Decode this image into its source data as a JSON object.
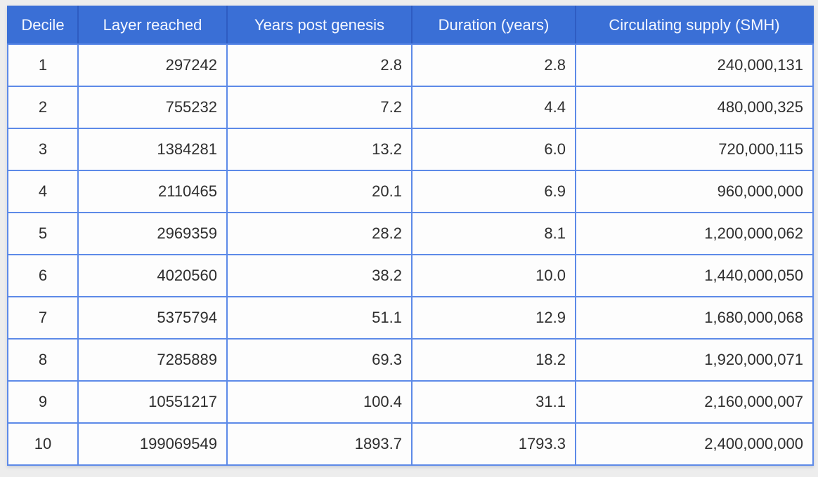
{
  "table": {
    "columns": [
      "Decile",
      "Layer reached",
      "Years post genesis",
      "Duration (years)",
      "Circulating supply (SMH)"
    ],
    "rows": [
      [
        "1",
        "297242",
        "2.8",
        "2.8",
        "240,000,131"
      ],
      [
        "2",
        "755232",
        "7.2",
        "4.4",
        "480,000,325"
      ],
      [
        "3",
        "1384281",
        "13.2",
        "6.0",
        "720,000,115"
      ],
      [
        "4",
        "2110465",
        "20.1",
        "6.9",
        "960,000,000"
      ],
      [
        "5",
        "2969359",
        "28.2",
        "8.1",
        "1,200,000,062"
      ],
      [
        "6",
        "4020560",
        "38.2",
        "10.0",
        "1,440,000,050"
      ],
      [
        "7",
        "5375794",
        "51.1",
        "12.9",
        "1,680,000,068"
      ],
      [
        "8",
        "7285889",
        "69.3",
        "18.2",
        "1,920,000,071"
      ],
      [
        "9",
        "10551217",
        "100.4",
        "31.1",
        "2,160,000,007"
      ],
      [
        "10",
        "199069549",
        "1893.7",
        "1793.3",
        "2,400,000,000"
      ]
    ]
  },
  "chart_data": {
    "type": "table",
    "columns": [
      "Decile",
      "Layer reached",
      "Years post genesis",
      "Duration (years)",
      "Circulating supply (SMH)"
    ],
    "rows": [
      [
        1,
        297242,
        2.8,
        2.8,
        240000131
      ],
      [
        2,
        755232,
        7.2,
        4.4,
        480000325
      ],
      [
        3,
        1384281,
        13.2,
        6.0,
        720000115
      ],
      [
        4,
        2110465,
        20.1,
        6.9,
        960000000
      ],
      [
        5,
        2969359,
        28.2,
        8.1,
        1200000062
      ],
      [
        6,
        4020560,
        38.2,
        10.0,
        1440000050
      ],
      [
        7,
        5375794,
        51.1,
        12.9,
        1680000068
      ],
      [
        8,
        7285889,
        69.3,
        18.2,
        1920000071
      ],
      [
        9,
        10551217,
        100.4,
        31.1,
        2160000007
      ],
      [
        10,
        199069549,
        1893.7,
        1793.3,
        2400000000
      ]
    ]
  },
  "colors": {
    "header_bg": "#3a6fd6",
    "header_divider": "#2e5cc2",
    "header_text": "#f4f7ff",
    "grid": "#5d8ae8",
    "cell_bg": "#fdfdfd",
    "page_bg": "#ededed",
    "body_text": "#2e2e2e"
  }
}
